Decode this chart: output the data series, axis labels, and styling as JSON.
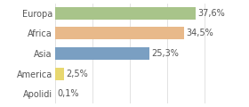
{
  "categories": [
    "Europa",
    "Africa",
    "Asia",
    "America",
    "Apolidi"
  ],
  "values": [
    37.6,
    34.5,
    25.3,
    2.5,
    0.1
  ],
  "labels": [
    "37,6%",
    "34,5%",
    "25,3%",
    "2,5%",
    "0,1%"
  ],
  "bar_colors": [
    "#a8c48a",
    "#e8b98a",
    "#7a9fc2",
    "#e8d870",
    "#e0e0e0"
  ],
  "background_color": "#ffffff",
  "xlim": [
    0,
    44
  ],
  "bar_height": 0.62,
  "label_fontsize": 7.0,
  "tick_fontsize": 7.0,
  "grid_color": "#dddddd",
  "text_color": "#555555"
}
